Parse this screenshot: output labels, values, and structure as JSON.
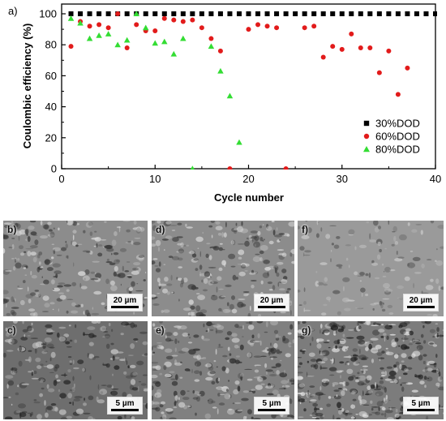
{
  "chart_data": {
    "type": "scatter",
    "panel_label": "a)",
    "xlabel": "Cycle number",
    "ylabel": "Coulombic efficiency (%)",
    "xlim": [
      0,
      40
    ],
    "ylim": [
      0,
      100
    ],
    "xticks": [
      0,
      10,
      20,
      30,
      40
    ],
    "yticks": [
      0,
      20,
      40,
      60,
      80,
      100
    ],
    "grid": false,
    "legend_position": "bottom-right",
    "series": [
      {
        "name": "30%DOD",
        "marker": "square",
        "color": "#000000",
        "points": [
          [
            1,
            100
          ],
          [
            2,
            100
          ],
          [
            3,
            100
          ],
          [
            4,
            100
          ],
          [
            5,
            100
          ],
          [
            6,
            100
          ],
          [
            7,
            100
          ],
          [
            8,
            100
          ],
          [
            9,
            100
          ],
          [
            10,
            100
          ],
          [
            11,
            100
          ],
          [
            12,
            100
          ],
          [
            13,
            100
          ],
          [
            14,
            100
          ],
          [
            15,
            100
          ],
          [
            16,
            100
          ],
          [
            17,
            100
          ],
          [
            18,
            100
          ],
          [
            19,
            100
          ],
          [
            20,
            100
          ],
          [
            21,
            100
          ],
          [
            22,
            100
          ],
          [
            23,
            100
          ],
          [
            24,
            100
          ],
          [
            25,
            100
          ],
          [
            26,
            100
          ],
          [
            27,
            100
          ],
          [
            28,
            100
          ],
          [
            29,
            100
          ],
          [
            30,
            100
          ],
          [
            31,
            100
          ],
          [
            32,
            100
          ],
          [
            33,
            100
          ],
          [
            34,
            100
          ],
          [
            35,
            100
          ],
          [
            36,
            100
          ],
          [
            37,
            100
          ],
          [
            38,
            100
          ],
          [
            39,
            100
          ],
          [
            40,
            100
          ]
        ]
      },
      {
        "name": "60%DOD",
        "marker": "circle",
        "color": "#e21b1b",
        "points": [
          [
            1,
            79
          ],
          [
            2,
            95
          ],
          [
            3,
            92
          ],
          [
            4,
            93
          ],
          [
            5,
            91
          ],
          [
            6,
            100
          ],
          [
            7,
            78
          ],
          [
            8,
            93
          ],
          [
            9,
            89
          ],
          [
            10,
            89
          ],
          [
            11,
            97
          ],
          [
            12,
            96
          ],
          [
            13,
            95
          ],
          [
            14,
            96
          ],
          [
            15,
            91
          ],
          [
            16,
            84
          ],
          [
            17,
            76
          ],
          [
            18,
            0
          ],
          [
            20,
            90
          ],
          [
            21,
            93
          ],
          [
            22,
            92
          ],
          [
            23,
            91
          ],
          [
            24,
            0
          ],
          [
            26,
            91
          ],
          [
            27,
            92
          ],
          [
            28,
            72
          ],
          [
            29,
            79
          ],
          [
            30,
            77
          ],
          [
            31,
            87
          ],
          [
            32,
            78
          ],
          [
            33,
            78
          ],
          [
            34,
            62
          ],
          [
            35,
            76
          ],
          [
            36,
            48
          ],
          [
            37,
            65
          ]
        ]
      },
      {
        "name": "80%DOD",
        "marker": "triangle",
        "color": "#33dd33",
        "points": [
          [
            1,
            97
          ],
          [
            2,
            94
          ],
          [
            3,
            84
          ],
          [
            4,
            86
          ],
          [
            5,
            87
          ],
          [
            6,
            80
          ],
          [
            7,
            83
          ],
          [
            8,
            100
          ],
          [
            9,
            91
          ],
          [
            10,
            81
          ],
          [
            11,
            82
          ],
          [
            12,
            74
          ],
          [
            13,
            84
          ],
          [
            14,
            0
          ],
          [
            16,
            79
          ],
          [
            17,
            63
          ],
          [
            18,
            47
          ],
          [
            19,
            17
          ]
        ]
      }
    ]
  },
  "sem_panels": [
    {
      "label": "b)",
      "scale": "20 µm",
      "tone": "light"
    },
    {
      "label": "d)",
      "scale": "20 µm",
      "tone": "light"
    },
    {
      "label": "f)",
      "scale": "20 µm",
      "tone": "smooth"
    },
    {
      "label": "c)",
      "scale": "5 µm",
      "tone": "dark"
    },
    {
      "label": "e)",
      "scale": "5 µm",
      "tone": "mid"
    },
    {
      "label": "g)",
      "scale": "5 µm",
      "tone": "speckle"
    }
  ]
}
